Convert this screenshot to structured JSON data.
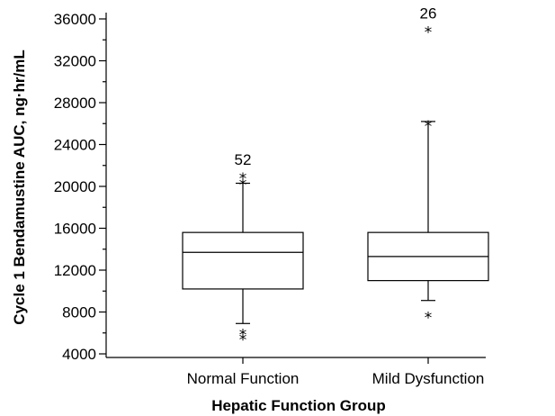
{
  "chart_data": {
    "type": "box",
    "xlabel": "Hepatic Function Group",
    "ylabel": "Cycle 1 Bendamustine AUC, ng·hr/mL",
    "ylim": [
      4000,
      37000
    ],
    "yticks": [
      4000,
      8000,
      12000,
      16000,
      20000,
      24000,
      28000,
      32000,
      36000
    ],
    "ytick_labels": [
      "4000",
      "8000",
      "12000",
      "16000",
      "20000",
      "24000",
      "28000",
      "32000",
      "36000"
    ],
    "minor_ticks": true,
    "grid": false,
    "outlier_marker": "*",
    "categories": [
      "Normal Function",
      "Mild Dysfunction"
    ],
    "groups": [
      {
        "name": "Normal Function",
        "n_label": "52",
        "whisker_low": 6900,
        "q1": 10200,
        "median": 13700,
        "q3": 15600,
        "whisker_high": 20300,
        "outliers": [
          5800,
          6300,
          20600,
          21200
        ]
      },
      {
        "name": "Mild Dysfunction",
        "n_label": "26",
        "whisker_low": 9100,
        "q1": 11000,
        "median": 13300,
        "q3": 15600,
        "whisker_high": 26200,
        "outliers": [
          7900,
          26200,
          35200
        ]
      }
    ]
  }
}
